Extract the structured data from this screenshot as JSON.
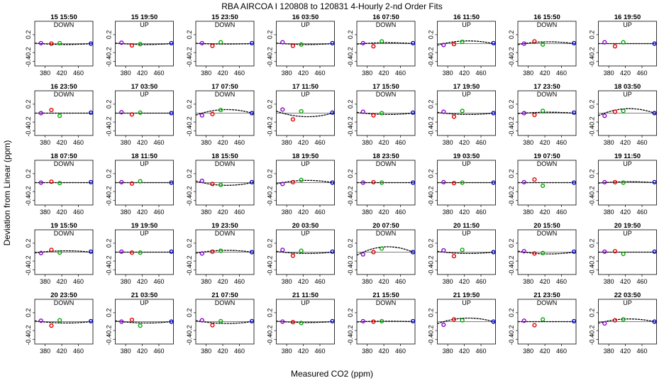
{
  "chart_data": {
    "type": "scatter",
    "title": "RBA   AIRCOA I   120808 to 120831   4-Hourly 2-nd Order Fits",
    "xlabel": "Measured CO2 (ppm)",
    "ylabel": "Deviation from Linear (ppm)",
    "xlim": [
      355,
      495
    ],
    "ylim": [
      -0.5,
      0.5
    ],
    "xticks": [
      380,
      420,
      460
    ],
    "yticks": [
      -0.4,
      -0.2,
      0.2
    ],
    "ytick_labels": [
      "-0.4",
      "-0.2",
      "0.2"
    ],
    "standard_co2": [
      370,
      395,
      415,
      490
    ],
    "standard_colors": [
      "#8800cc",
      "#dd0000",
      "#00aa00",
      "#0000cc"
    ],
    "curve_color": "#000000",
    "reference_line": 0,
    "panels": [
      {
        "title": "15 15:50",
        "mode": "DOWN",
        "deviations": [
          0.01,
          0.0,
          0.01,
          0.0
        ],
        "curvature": -0.02
      },
      {
        "title": "15 19:50",
        "mode": "UP",
        "deviations": [
          0.02,
          -0.04,
          -0.01,
          0.01
        ],
        "curvature": -0.02
      },
      {
        "title": "15 23:50",
        "mode": "DOWN",
        "deviations": [
          0.01,
          -0.05,
          0.03,
          0.01
        ],
        "curvature": -0.01
      },
      {
        "title": "16 03:50",
        "mode": "UP",
        "deviations": [
          0.03,
          -0.05,
          -0.02,
          0.01
        ],
        "curvature": -0.02
      },
      {
        "title": "16 07:50",
        "mode": "DOWN",
        "deviations": [
          0.01,
          -0.06,
          0.05,
          0.01
        ],
        "curvature": 0.02
      },
      {
        "title": "16 11:50",
        "mode": "UP",
        "deviations": [
          -0.03,
          -0.01,
          0.04,
          0.01
        ],
        "curvature": 0.06
      },
      {
        "title": "16 15:50",
        "mode": "DOWN",
        "deviations": [
          0.0,
          0.05,
          -0.02,
          0.01
        ],
        "curvature": 0.04
      },
      {
        "title": "16 19:50",
        "mode": "UP",
        "deviations": [
          0.03,
          -0.06,
          0.03,
          0.0
        ],
        "curvature": 0.0
      },
      {
        "title": "16 23:50",
        "mode": "DOWN",
        "deviations": [
          0.0,
          0.07,
          -0.06,
          0.01
        ],
        "curvature": 0.0
      },
      {
        "title": "17 03:50",
        "mode": "UP",
        "deviations": [
          0.02,
          -0.03,
          0.01,
          0.0
        ],
        "curvature": 0.0
      },
      {
        "title": "17 07:50",
        "mode": "DOWN",
        "deviations": [
          -0.05,
          -0.02,
          0.07,
          0.0
        ],
        "curvature": 0.08
      },
      {
        "title": "17 11:50",
        "mode": "UP",
        "deviations": [
          0.08,
          -0.14,
          0.04,
          0.01
        ],
        "curvature": -0.08
      },
      {
        "title": "17 15:50",
        "mode": "DOWN",
        "deviations": [
          0.03,
          -0.05,
          0.0,
          0.01
        ],
        "curvature": -0.03
      },
      {
        "title": "17 19:50",
        "mode": "UP",
        "deviations": [
          0.03,
          -0.08,
          0.05,
          0.0
        ],
        "curvature": -0.03
      },
      {
        "title": "17 23:50",
        "mode": "DOWN",
        "deviations": [
          0.0,
          -0.04,
          0.05,
          0.01
        ],
        "curvature": 0.02
      },
      {
        "title": "18 03:50",
        "mode": "UP",
        "deviations": [
          -0.06,
          0.03,
          0.05,
          0.0
        ],
        "curvature": 0.1
      },
      {
        "title": "18 07:50",
        "mode": "DOWN",
        "deviations": [
          0.0,
          0.02,
          -0.01,
          0.01
        ],
        "curvature": 0.0
      },
      {
        "title": "18 11:50",
        "mode": "UP",
        "deviations": [
          0.01,
          -0.02,
          0.03,
          0.0
        ],
        "curvature": 0.0
      },
      {
        "title": "18 15:50",
        "mode": "DOWN",
        "deviations": [
          0.04,
          -0.03,
          -0.05,
          0.01
        ],
        "curvature": -0.06
      },
      {
        "title": "18 19:50",
        "mode": "UP",
        "deviations": [
          -0.03,
          0.01,
          0.06,
          0.0
        ],
        "curvature": 0.05
      },
      {
        "title": "18 23:50",
        "mode": "DOWN",
        "deviations": [
          0.0,
          0.01,
          0.0,
          0.0
        ],
        "curvature": 0.0
      },
      {
        "title": "19 03:50",
        "mode": "UP",
        "deviations": [
          0.01,
          -0.01,
          0.0,
          0.0
        ],
        "curvature": 0.0
      },
      {
        "title": "19 07:50",
        "mode": "DOWN",
        "deviations": [
          0.01,
          0.07,
          -0.07,
          0.0
        ],
        "curvature": 0.0
      },
      {
        "title": "19 11:50",
        "mode": "UP",
        "deviations": [
          0.01,
          0.01,
          0.0,
          0.01
        ],
        "curvature": 0.02
      },
      {
        "title": "19 15:50",
        "mode": "DOWN",
        "deviations": [
          -0.02,
          0.05,
          -0.01,
          0.01
        ],
        "curvature": 0.03
      },
      {
        "title": "19 19:50",
        "mode": "UP",
        "deviations": [
          0.01,
          -0.01,
          -0.01,
          0.01
        ],
        "curvature": 0.0
      },
      {
        "title": "19 23:50",
        "mode": "DOWN",
        "deviations": [
          -0.03,
          0.01,
          0.03,
          0.0
        ],
        "curvature": 0.04
      },
      {
        "title": "20 03:50",
        "mode": "UP",
        "deviations": [
          0.05,
          -0.08,
          0.03,
          0.01
        ],
        "curvature": -0.03
      },
      {
        "title": "20 07:50",
        "mode": "DOWN",
        "deviations": [
          -0.05,
          0.0,
          0.08,
          0.0
        ],
        "curvature": 0.12
      },
      {
        "title": "20 11:50",
        "mode": "UP",
        "deviations": [
          0.04,
          -0.09,
          0.05,
          0.0
        ],
        "curvature": -0.03
      },
      {
        "title": "20 15:50",
        "mode": "DOWN",
        "deviations": [
          0.02,
          -0.03,
          -0.02,
          0.01
        ],
        "curvature": -0.04
      },
      {
        "title": "20 19:50",
        "mode": "UP",
        "deviations": [
          0.01,
          0.02,
          -0.04,
          0.01
        ],
        "curvature": 0.0
      },
      {
        "title": "20 23:50",
        "mode": "DOWN",
        "deviations": [
          0.02,
          -0.09,
          0.03,
          0.01
        ],
        "curvature": -0.03
      },
      {
        "title": "21 03:50",
        "mode": "UP",
        "deviations": [
          0.0,
          0.04,
          -0.09,
          0.0
        ],
        "curvature": -0.03
      },
      {
        "title": "21 07:50",
        "mode": "DOWN",
        "deviations": [
          0.03,
          -0.08,
          0.01,
          0.01
        ],
        "curvature": -0.04
      },
      {
        "title": "21 11:50",
        "mode": "UP",
        "deviations": [
          0.0,
          -0.01,
          -0.03,
          0.01
        ],
        "curvature": -0.02
      },
      {
        "title": "21 15:50",
        "mode": "DOWN",
        "deviations": [
          0.01,
          0.0,
          0.01,
          0.01
        ],
        "curvature": 0.01
      },
      {
        "title": "21 19:50",
        "mode": "UP",
        "deviations": [
          -0.07,
          0.05,
          0.03,
          0.0
        ],
        "curvature": 0.08
      },
      {
        "title": "21 23:50",
        "mode": "DOWN",
        "deviations": [
          0.02,
          -0.08,
          0.05,
          0.01
        ],
        "curvature": 0.0
      },
      {
        "title": "22 03:50",
        "mode": "UP",
        "deviations": [
          -0.04,
          0.03,
          0.05,
          0.0
        ],
        "curvature": 0.06
      }
    ]
  }
}
